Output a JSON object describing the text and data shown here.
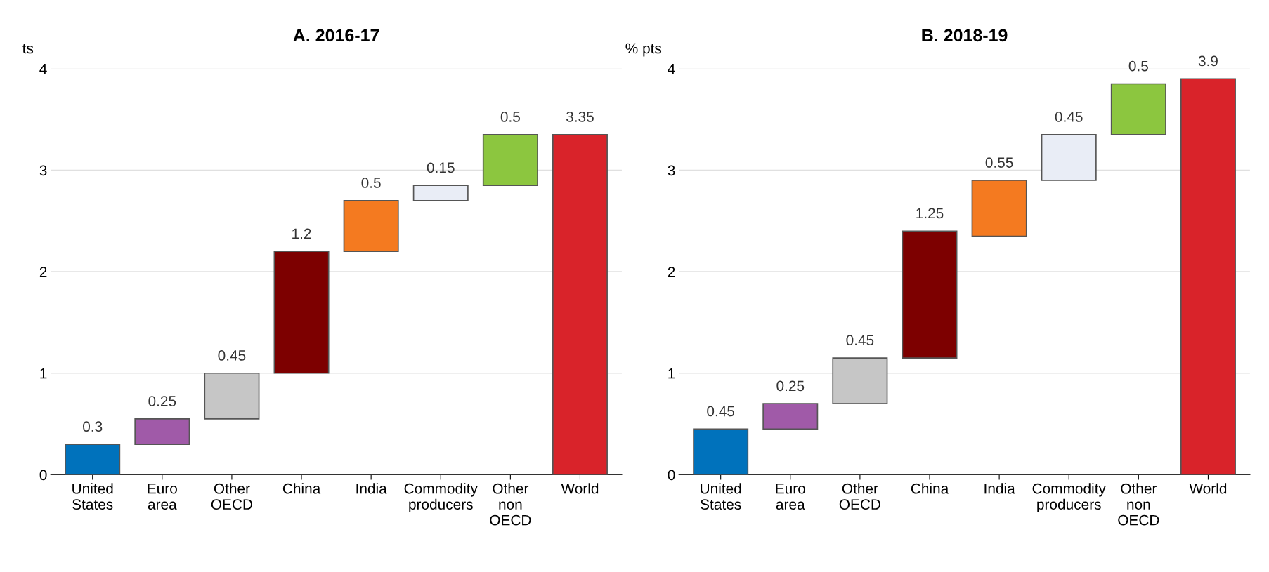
{
  "chart_data": [
    {
      "type": "bar",
      "title": "A. 2016-17",
      "ylabel": "ts",
      "categories": [
        "United\nStates",
        "Euro\narea",
        "Other\nOECD",
        "China",
        "India",
        "Commodity\nproducers",
        "Other\nnon\nOECD",
        "World"
      ],
      "values": [
        0.3,
        0.25,
        0.45,
        1.2,
        0.5,
        0.15,
        0.5,
        3.35
      ],
      "base": [
        0,
        0.3,
        0.55,
        1.0,
        2.2,
        2.7,
        2.85,
        0
      ],
      "colors": [
        "#0072bc",
        "#a05aa8",
        "#c6c6c6",
        "#7d0000",
        "#f47a20",
        "#e9edf6",
        "#8cc63f",
        "#d9232a"
      ],
      "ylim": [
        0,
        4
      ],
      "yticks": [
        0,
        1,
        2,
        3,
        4
      ],
      "grid": "y",
      "data_labels": true
    },
    {
      "type": "bar",
      "title": "B. 2018-19",
      "ylabel": "% pts",
      "categories": [
        "United\nStates",
        "Euro\narea",
        "Other\nOECD",
        "China",
        "India",
        "Commodity\nproducers",
        "Other\nnon\nOECD",
        "World"
      ],
      "values": [
        0.45,
        0.25,
        0.45,
        1.25,
        0.55,
        0.45,
        0.5,
        3.9
      ],
      "base": [
        0,
        0.45,
        0.7,
        1.15,
        2.35,
        2.9,
        3.35,
        0
      ],
      "colors": [
        "#0072bc",
        "#a05aa8",
        "#c6c6c6",
        "#7d0000",
        "#f47a20",
        "#e9edf6",
        "#8cc63f",
        "#d9232a"
      ],
      "ylim": [
        0,
        4
      ],
      "yticks": [
        0,
        1,
        2,
        3,
        4
      ],
      "grid": "y",
      "data_labels": true
    }
  ]
}
